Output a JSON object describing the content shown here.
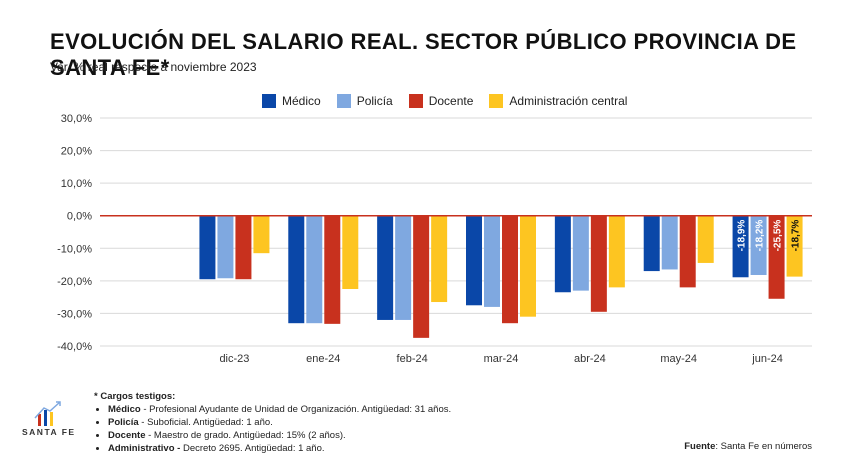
{
  "header": {
    "title": "EVOLUCIÓN DEL SALARIO REAL. SECTOR PÚBLICO PROVINCIA DE SANTA FE*",
    "subtitle": "Var. % real respecto a noviembre 2023"
  },
  "chart_data": {
    "type": "bar",
    "categories": [
      "dic-23",
      "ene-24",
      "feb-24",
      "mar-24",
      "abr-24",
      "may-24",
      "jun-24"
    ],
    "series": [
      {
        "name": "Médico",
        "color": "#0a47a8",
        "values": [
          -19.5,
          -33.0,
          -32.0,
          -27.5,
          -23.5,
          -17.0,
          -18.9
        ]
      },
      {
        "name": "Policía",
        "color": "#7fa8e0",
        "values": [
          -19.2,
          -33.0,
          -32.0,
          -28.0,
          -23.0,
          -16.5,
          -18.2
        ]
      },
      {
        "name": "Docente",
        "color": "#c8311e",
        "values": [
          -19.5,
          -33.2,
          -37.5,
          -33.0,
          -29.5,
          -22.0,
          -25.5
        ]
      },
      {
        "name": "Administración central",
        "color": "#fdc521",
        "values": [
          -11.5,
          -22.5,
          -26.5,
          -31.0,
          -22.0,
          -14.5,
          -18.7
        ]
      }
    ],
    "data_labels": {
      "jun-24": [
        "-18,9%",
        "-18,2%",
        "-25,5%",
        "-18,7%"
      ]
    },
    "y_ticks": [
      "30,0%",
      "20,0%",
      "10,0%",
      "0,0%",
      "-10,0%",
      "-20,0%",
      "-30,0%",
      "-40,0%"
    ],
    "ylim": [
      -40,
      30
    ],
    "zero_line_color": "#c8311e",
    "grid": true,
    "legend_position": "top-center"
  },
  "notes": {
    "title": "* Cargos testigos:",
    "items": [
      {
        "key": "Médico",
        "text": " - Profesional Ayudante de Unidad de Organización. Antigüedad: 31 años."
      },
      {
        "key": "Policía",
        "text": " - Suboficial. Antigüedad: 1 año."
      },
      {
        "key": "Docente",
        "text": " - Maestro de grado. Antigüedad: 15% (2 años)."
      },
      {
        "key": "Administrativo -",
        "text": " Decreto 2695. Antigüedad: 1 año."
      }
    ]
  },
  "source": {
    "label": "Fuente",
    "text": ": Santa Fe en números"
  },
  "logo": {
    "text": "SANTA FE",
    "icon": "bar-chart-arrow-icon"
  }
}
